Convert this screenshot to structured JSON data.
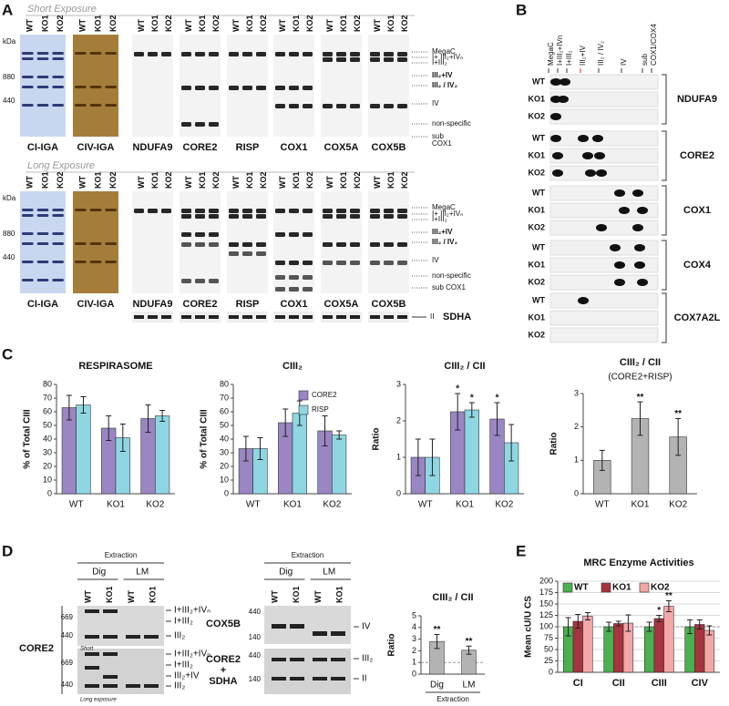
{
  "panels": {
    "A": {
      "label": "A",
      "short_title": "Short Exposure",
      "long_title": "Long Exposure",
      "kda": "kDa",
      "markers": [
        880,
        440
      ],
      "lanes": [
        "WT",
        "KO1",
        "KO2"
      ],
      "blots": [
        "CI-IGA",
        "CIV-IGA",
        "NDUFA9",
        "CORE2",
        "RISP",
        "COX1",
        "COX5A",
        "COX5B"
      ],
      "short_bands": [
        "MegaC",
        "I+ III₂+IVₙ",
        "I+III₂",
        "III₂+IV",
        "III₂ / IV₂",
        "IV",
        "non-specific",
        "sub",
        "COX1"
      ],
      "long_bands": [
        "MegaC",
        "I+ III₂+IVₙ",
        "I+III₂",
        "III₂+IV",
        "III₂ / IV₂",
        "IV",
        "non-specific",
        "sub COX1"
      ],
      "sdha": [
        "II",
        "SDHA"
      ]
    },
    "B": {
      "label": "B",
      "columns": [
        "MegaC",
        "I+III₂+IVn",
        "I+III₂",
        "III₂+IV",
        "III₂ / IV₂",
        "IV",
        "sub",
        "COX1/COX4"
      ],
      "rows": [
        "WT",
        "KO1",
        "KO2"
      ],
      "groups": [
        "NDUFA9",
        "CORE2",
        "COX1",
        "COX4",
        "COX7A2L"
      ]
    },
    "C": {
      "label": "C"
    },
    "D": {
      "label": "D",
      "core2": {
        "extraction": "Extraction",
        "methods": [
          "Dig",
          "LM"
        ],
        "lanes": [
          "WT",
          "KO1"
        ],
        "protein": "CORE2",
        "short_markers": [
          669,
          440
        ],
        "long_markers": [
          669,
          440
        ],
        "short_note": "Short",
        "long_note": "Long exposure",
        "short_bands": [
          "I+III₂+IVₙ",
          "I+III₂",
          "III₂"
        ],
        "long_bands": [
          "I+III₂+IVₙ",
          "I+III₂",
          "III₂+IV",
          "III₂"
        ]
      },
      "cox5b": {
        "extraction": "Extraction",
        "methods": [
          "Dig",
          "LM"
        ],
        "lanes": [
          "WT",
          "KO1"
        ],
        "top_protein": "COX5B",
        "top_markers": [
          440,
          140
        ],
        "top_band": "IV",
        "bottom_protein": [
          "CORE2",
          "+",
          "SDHA"
        ],
        "bottom_markers": [
          440,
          140
        ],
        "bottom_bands": [
          "III₂",
          "II"
        ]
      }
    },
    "E": {
      "label": "E"
    }
  },
  "chart_data": [
    {
      "type": "bar",
      "title": "RESPIRASOME",
      "y_label": "% of Total CIII",
      "categories": [
        "WT",
        "KO1",
        "KO2"
      ],
      "series": [
        {
          "color": "#9a86c2",
          "values": [
            63,
            48,
            55
          ],
          "errors": [
            9,
            9,
            10
          ]
        },
        {
          "color": "#8fd6e3",
          "values": [
            65,
            41,
            57
          ],
          "errors": [
            6,
            10,
            4
          ]
        }
      ],
      "ylim": [
        0,
        80
      ],
      "yticks": [
        0,
        10,
        20,
        30,
        40,
        50,
        60,
        70,
        80
      ]
    },
    {
      "type": "bar",
      "title": "CIII₂",
      "title_color": "#2a3fbf",
      "y_label": "% of Total CIII",
      "categories": [
        "WT",
        "KO1",
        "KO2"
      ],
      "series": [
        {
          "name": "CORE2",
          "color": "#9a86c2",
          "values": [
            33,
            52,
            46
          ],
          "errors": [
            9,
            10,
            11
          ]
        },
        {
          "name": "RISP",
          "color": "#8fd6e3",
          "values": [
            33,
            59,
            43
          ],
          "errors": [
            8,
            9,
            3
          ]
        }
      ],
      "ylim": [
        0,
        80
      ],
      "yticks": [
        0,
        10,
        20,
        30,
        40,
        50,
        60,
        70,
        80
      ],
      "legend": "top-right"
    },
    {
      "type": "bar",
      "title": "CIII₂ / CII",
      "title_color": "#2a3fbf",
      "y_label": "Ratio",
      "categories": [
        "WT",
        "KO1",
        "KO2"
      ],
      "series": [
        {
          "color": "#9a86c2",
          "values": [
            1.0,
            2.25,
            2.05
          ],
          "errors": [
            0.5,
            0.5,
            0.45
          ],
          "significance": [
            null,
            "*",
            "*"
          ]
        },
        {
          "color": "#8fd6e3",
          "values": [
            1.0,
            2.3,
            1.4
          ],
          "errors": [
            0.5,
            0.2,
            0.5
          ],
          "significance": [
            null,
            "*",
            null
          ]
        }
      ],
      "ylim": [
        0,
        3
      ],
      "yticks": [
        0,
        1,
        2,
        3
      ]
    },
    {
      "type": "bar",
      "title": "CIII₂ / CII",
      "title_color": "#2a3fbf",
      "subtitle": "(CORE2+RISP)",
      "y_label": "Ratio",
      "categories": [
        "WT",
        "KO1",
        "KO2"
      ],
      "series": [
        {
          "color": "#b3b3b3",
          "values": [
            1.0,
            2.25,
            1.7
          ],
          "errors": [
            0.3,
            0.5,
            0.55
          ],
          "significance": [
            null,
            "**",
            "**"
          ]
        }
      ],
      "ylim": [
        0,
        3
      ],
      "yticks": [
        0,
        1,
        2,
        3
      ]
    },
    {
      "type": "bar",
      "title": "CIII₂ / CII",
      "title_color": "#2a3fbf",
      "y_label": "Ratio",
      "x_label": "Extraction",
      "categories": [
        "Dig",
        "LM"
      ],
      "series": [
        {
          "color": "#b3b3b3",
          "values": [
            2.8,
            2.05
          ],
          "errors": [
            0.6,
            0.35
          ],
          "significance": [
            "**",
            "**"
          ]
        }
      ],
      "ylim": [
        0,
        5
      ],
      "yticks": [
        0,
        1,
        2,
        3,
        4,
        5
      ],
      "hline": 1
    },
    {
      "type": "bar",
      "title": "MRC Enzyme Activities",
      "y_label": "Mean cU/U CS",
      "categories": [
        "CI",
        "CII",
        "CIII",
        "CIV"
      ],
      "series": [
        {
          "name": "WT",
          "color": "#4caf50",
          "values": [
            100,
            100,
            100,
            100
          ],
          "errors": [
            20,
            10,
            10,
            15
          ]
        },
        {
          "name": "KO1",
          "color": "#a5343e",
          "values": [
            112,
            107,
            118,
            105
          ],
          "errors": [
            15,
            5,
            7,
            10
          ],
          "significance": [
            null,
            null,
            "*",
            null
          ]
        },
        {
          "name": "KO2",
          "color": "#f4a7a7",
          "values": [
            123,
            108,
            145,
            92
          ],
          "errors": [
            8,
            18,
            12,
            10
          ],
          "significance": [
            null,
            null,
            "**",
            null
          ]
        }
      ],
      "ylim": [
        0,
        200
      ],
      "yticks": [
        0,
        25,
        50,
        75,
        100,
        125,
        150,
        175,
        200
      ],
      "grid": true,
      "hline": 100,
      "legend": "top"
    }
  ]
}
